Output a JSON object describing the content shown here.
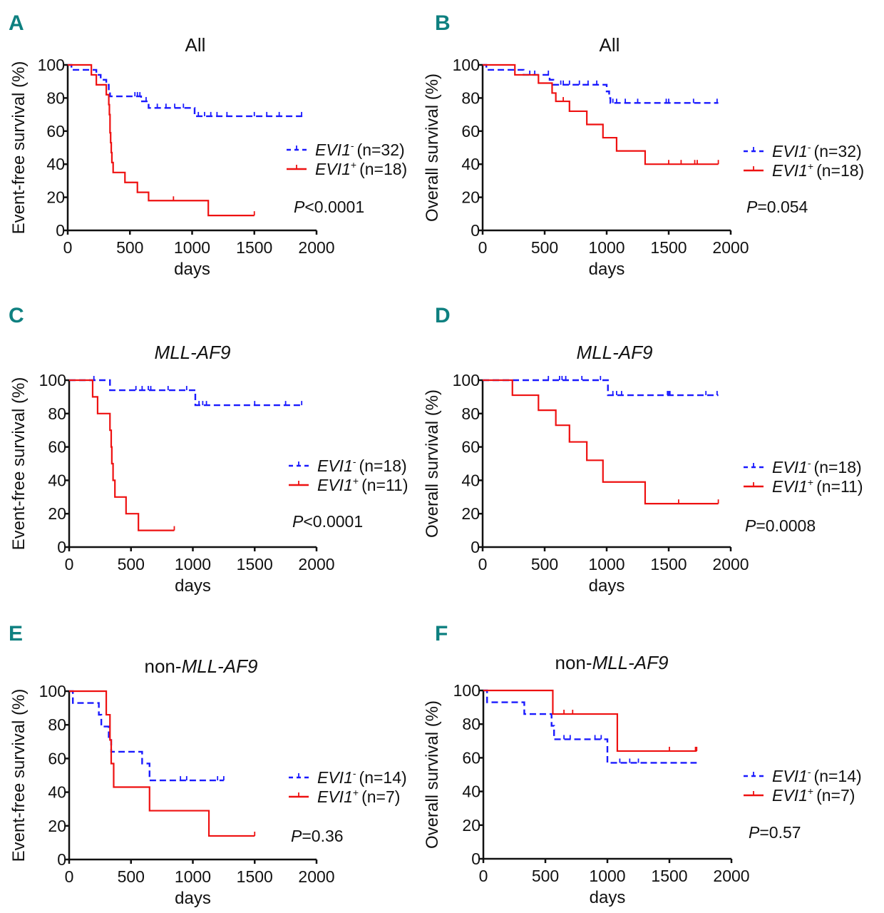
{
  "figure": {
    "panel_label_color": "#0e8080",
    "series_colors": {
      "evi1_neg": "#1a1aff",
      "evi1_pos": "#ee1111"
    }
  },
  "chart_data": [
    {
      "panel": "A",
      "type": "line",
      "title": "All",
      "title_italic": false,
      "xlabel": "days",
      "ylabel": "Event-free survival (%)",
      "xlim": [
        0,
        2000
      ],
      "ylim": [
        0,
        100
      ],
      "xticks": [
        "0",
        "500",
        "1000",
        "1500",
        "2000"
      ],
      "yticks": [
        "0",
        "20",
        "40",
        "60",
        "80",
        "100"
      ],
      "legend": [
        {
          "gene": "EVI1",
          "sup": "-",
          "n": "(n=32)"
        },
        {
          "gene": "EVI1",
          "sup": "+",
          "n": "(n=18)"
        }
      ],
      "pvalue": {
        "p": "P",
        "rest": "<0.0001"
      },
      "series": [
        {
          "name": "EVI1- (n=32)",
          "style": "dashed",
          "steps": [
            [
              0,
              100
            ],
            [
              30,
              97
            ],
            [
              230,
              94
            ],
            [
              265,
              91
            ],
            [
              310,
              88
            ],
            [
              330,
              84
            ],
            [
              340,
              81
            ],
            [
              590,
              78
            ],
            [
              650,
              74
            ],
            [
              1020,
              69
            ],
            [
              1890,
              69
            ]
          ],
          "censored": [
            540,
            560,
            580,
            630,
            720,
            790,
            860,
            930,
            1050,
            1100,
            1150,
            1200,
            1280,
            1500,
            1600,
            1700,
            1880
          ]
        },
        {
          "name": "EVI1+ (n=18)",
          "style": "solid",
          "steps": [
            [
              0,
              100
            ],
            [
              190,
              94
            ],
            [
              230,
              88
            ],
            [
              310,
              82
            ],
            [
              330,
              76
            ],
            [
              335,
              70
            ],
            [
              340,
              59
            ],
            [
              345,
              53
            ],
            [
              350,
              47
            ],
            [
              355,
              41
            ],
            [
              365,
              35
            ],
            [
              460,
              29
            ],
            [
              560,
              23
            ],
            [
              650,
              18
            ],
            [
              1130,
              9
            ],
            [
              1500,
              9
            ]
          ],
          "censored": [
            850,
            1500
          ]
        }
      ]
    },
    {
      "panel": "B",
      "type": "line",
      "title": "All",
      "title_italic": false,
      "xlabel": "days",
      "ylabel": "Overall survival (%)",
      "xlim": [
        0,
        2000
      ],
      "ylim": [
        0,
        100
      ],
      "xticks": [
        "0",
        "500",
        "1000",
        "1500",
        "2000"
      ],
      "yticks": [
        "0",
        "20",
        "40",
        "60",
        "80",
        "100"
      ],
      "legend": [
        {
          "gene": "EVI1",
          "sup": "-",
          "n": "(n=32)"
        },
        {
          "gene": "EVI1",
          "sup": "+",
          "n": "(n=18)"
        }
      ],
      "pvalue": {
        "p": "P",
        "rest": "=0.054"
      },
      "series": [
        {
          "name": "EVI1- (n=32)",
          "style": "dashed",
          "steps": [
            [
              0,
              100
            ],
            [
              30,
              97
            ],
            [
              330,
              94
            ],
            [
              540,
              91
            ],
            [
              570,
              88
            ],
            [
              1000,
              84
            ],
            [
              1020,
              80
            ],
            [
              1030,
              77
            ],
            [
              1900,
              77
            ]
          ],
          "censored": [
            380,
            420,
            530,
            630,
            650,
            700,
            780,
            850,
            920,
            1050,
            1080,
            1150,
            1250,
            1480,
            1500,
            1700,
            1890
          ]
        },
        {
          "name": "EVI1+ (n=18)",
          "style": "solid",
          "steps": [
            [
              0,
              100
            ],
            [
              260,
              94
            ],
            [
              450,
              89
            ],
            [
              560,
              83
            ],
            [
              590,
              78
            ],
            [
              700,
              72
            ],
            [
              840,
              64
            ],
            [
              970,
              56
            ],
            [
              1080,
              48
            ],
            [
              1310,
              40
            ],
            [
              1900,
              40
            ]
          ],
          "censored": [
            650,
            1500,
            1600,
            1710,
            1730,
            1900
          ]
        }
      ]
    },
    {
      "panel": "C",
      "type": "line",
      "title": "MLL-AF9",
      "title_italic": true,
      "xlabel": "days",
      "ylabel": "Event-free survival (%)",
      "xlim": [
        0,
        2000
      ],
      "ylim": [
        0,
        100
      ],
      "xticks": [
        "0",
        "500",
        "1000",
        "1500",
        "2000"
      ],
      "yticks": [
        "0",
        "20",
        "40",
        "60",
        "80",
        "100"
      ],
      "legend": [
        {
          "gene": "EVI1",
          "sup": "-",
          "n": "(n=18)"
        },
        {
          "gene": "EVI1",
          "sup": "+",
          "n": "(n=11)"
        }
      ],
      "pvalue": {
        "p": "P",
        "rest": "<0.0001"
      },
      "series": [
        {
          "name": "EVI1- (n=18)",
          "style": "dashed",
          "steps": [
            [
              0,
              100
            ],
            [
              330,
              94
            ],
            [
              1020,
              85
            ],
            [
              1890,
              85
            ]
          ],
          "censored": [
            200,
            540,
            590,
            640,
            660,
            800,
            950,
            1050,
            1080,
            1110,
            1500,
            1750,
            1880
          ]
        },
        {
          "name": "EVI1+ (n=11)",
          "style": "solid",
          "steps": [
            [
              0,
              100
            ],
            [
              190,
              90
            ],
            [
              230,
              80
            ],
            [
              330,
              70
            ],
            [
              340,
              60
            ],
            [
              345,
              50
            ],
            [
              355,
              40
            ],
            [
              370,
              30
            ],
            [
              460,
              20
            ],
            [
              560,
              10
            ],
            [
              850,
              10
            ]
          ],
          "censored": [
            850
          ]
        }
      ]
    },
    {
      "panel": "D",
      "type": "line",
      "title": "MLL-AF9",
      "title_italic": true,
      "xlabel": "days",
      "ylabel": "Overall survival (%)",
      "xlim": [
        0,
        2000
      ],
      "ylim": [
        0,
        100
      ],
      "xticks": [
        "0",
        "500",
        "1000",
        "1500",
        "2000"
      ],
      "yticks": [
        "0",
        "20",
        "40",
        "60",
        "80",
        "100"
      ],
      "legend": [
        {
          "gene": "EVI1",
          "sup": "-",
          "n": "(n=18)"
        },
        {
          "gene": "EVI1",
          "sup": "+",
          "n": "(n=11)"
        }
      ],
      "pvalue": {
        "p": "P",
        "rest": "=0.0008"
      },
      "series": [
        {
          "name": "EVI1- (n=18)",
          "style": "dashed",
          "steps": [
            [
              0,
              100
            ],
            [
              1010,
              91
            ],
            [
              1900,
              91
            ]
          ],
          "censored": [
            530,
            620,
            640,
            670,
            800,
            950,
            1050,
            1080,
            1120,
            1490,
            1500,
            1510,
            1800,
            1890
          ]
        },
        {
          "name": "EVI1+ (n=11)",
          "style": "solid",
          "steps": [
            [
              0,
              100
            ],
            [
              240,
              91
            ],
            [
              450,
              82
            ],
            [
              590,
              73
            ],
            [
              700,
              63
            ],
            [
              840,
              52
            ],
            [
              970,
              39
            ],
            [
              1310,
              26
            ],
            [
              1900,
              26
            ]
          ],
          "censored": [
            700,
            1580,
            1900
          ]
        }
      ]
    },
    {
      "panel": "E",
      "type": "line",
      "title": "non-MLL-AF9",
      "title_prefix": "non-",
      "title_italic_part": "MLL-AF9",
      "xlabel": "days",
      "ylabel": "Event-free survival (%)",
      "xlim": [
        0,
        2000
      ],
      "ylim": [
        0,
        100
      ],
      "xticks": [
        "0",
        "500",
        "1000",
        "1500",
        "2000"
      ],
      "yticks": [
        "0",
        "20",
        "40",
        "60",
        "80",
        "100"
      ],
      "legend": [
        {
          "gene": "EVI1",
          "sup": "-",
          "n": "(n=14)"
        },
        {
          "gene": "EVI1",
          "sup": "+",
          "n": "(n=7)"
        }
      ],
      "pvalue": {
        "p": "P",
        "rest": "=0.36"
      },
      "series": [
        {
          "name": "EVI1- (n=14)",
          "style": "dashed",
          "steps": [
            [
              0,
              100
            ],
            [
              30,
              93
            ],
            [
              240,
              86
            ],
            [
              260,
              79
            ],
            [
              320,
              71
            ],
            [
              340,
              64
            ],
            [
              590,
              57
            ],
            [
              650,
              47
            ],
            [
              1250,
              47
            ]
          ],
          "censored": [
            900,
            950,
            1200,
            1250
          ]
        },
        {
          "name": "EVI1+ (n=7)",
          "style": "solid",
          "steps": [
            [
              0,
              100
            ],
            [
              300,
              86
            ],
            [
              330,
              71
            ],
            [
              340,
              57
            ],
            [
              360,
              43
            ],
            [
              650,
              29
            ],
            [
              1130,
              14
            ],
            [
              1500,
              14
            ]
          ],
          "censored": [
            1500
          ]
        }
      ]
    },
    {
      "panel": "F",
      "type": "line",
      "title": "non-MLL-AF9",
      "title_prefix": "non-",
      "title_italic_part": "MLL-AF9",
      "xlabel": "days",
      "ylabel": "Overall survival (%)",
      "xlim": [
        0,
        2000
      ],
      "ylim": [
        0,
        100
      ],
      "xticks": [
        "0",
        "500",
        "1000",
        "1500",
        "2000"
      ],
      "yticks": [
        "0",
        "20",
        "40",
        "60",
        "80",
        "100"
      ],
      "legend": [
        {
          "gene": "EVI1",
          "sup": "-",
          "n": "(n=14)"
        },
        {
          "gene": "EVI1",
          "sup": "+",
          "n": "(n=7)"
        }
      ],
      "pvalue": {
        "p": "P",
        "rest": "=0.57"
      },
      "series": [
        {
          "name": "EVI1- (n=14)",
          "style": "dashed",
          "steps": [
            [
              0,
              100
            ],
            [
              30,
              93
            ],
            [
              330,
              86
            ],
            [
              550,
              79
            ],
            [
              570,
              71
            ],
            [
              1000,
              57
            ],
            [
              1720,
              57
            ]
          ],
          "censored": [
            650,
            700,
            900,
            950,
            1100,
            1180,
            1250
          ]
        },
        {
          "name": "EVI1+ (n=7)",
          "style": "solid",
          "steps": [
            [
              0,
              100
            ],
            [
              560,
              86
            ],
            [
              1080,
              64
            ],
            [
              1720,
              64
            ]
          ],
          "censored": [
            650,
            720,
            1500,
            1710,
            1720
          ]
        }
      ]
    }
  ]
}
